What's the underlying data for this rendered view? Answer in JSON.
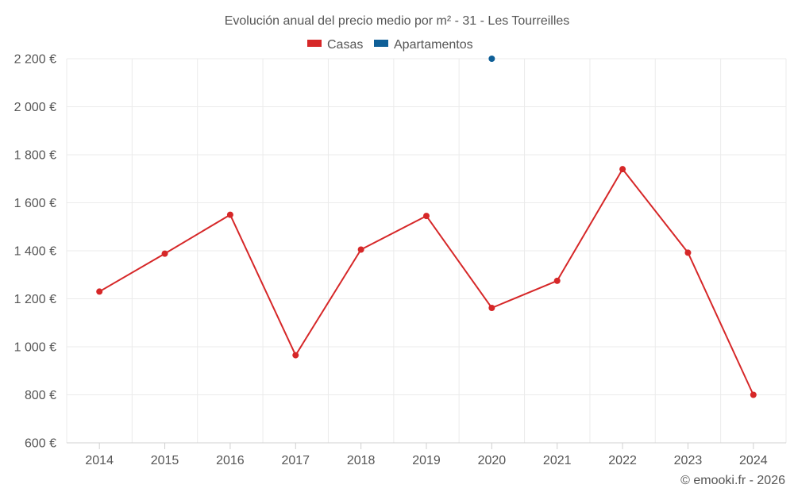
{
  "chart_data": {
    "type": "line",
    "title": "Evolución anual del precio medio por m² - 31 - Les Tourreilles",
    "categories": [
      "2014",
      "2015",
      "2016",
      "2017",
      "2018",
      "2019",
      "2020",
      "2021",
      "2022",
      "2023",
      "2024"
    ],
    "series": [
      {
        "name": "Casas",
        "color": "#d62728",
        "values": [
          1230,
          1388,
          1550,
          965,
          1405,
          1545,
          1162,
          1275,
          1740,
          1392,
          800
        ]
      },
      {
        "name": "Apartamentos",
        "color": "#0f5f97",
        "values": [
          null,
          null,
          null,
          null,
          null,
          null,
          2200,
          null,
          null,
          null,
          null
        ]
      }
    ],
    "y_ticks": [
      600,
      800,
      1000,
      1200,
      1400,
      1600,
      1800,
      2000,
      2200
    ],
    "y_tick_labels": [
      "600 €",
      "800 €",
      "1 000 €",
      "1 200 €",
      "1 400 €",
      "1 600 €",
      "1 800 €",
      "2 000 €",
      "2 200 €"
    ],
    "ylim": [
      600,
      2200
    ],
    "xlabel": "",
    "ylabel": "",
    "grid": true,
    "legend_position": "top-center"
  },
  "credit": "© emooki.fr - 2026"
}
